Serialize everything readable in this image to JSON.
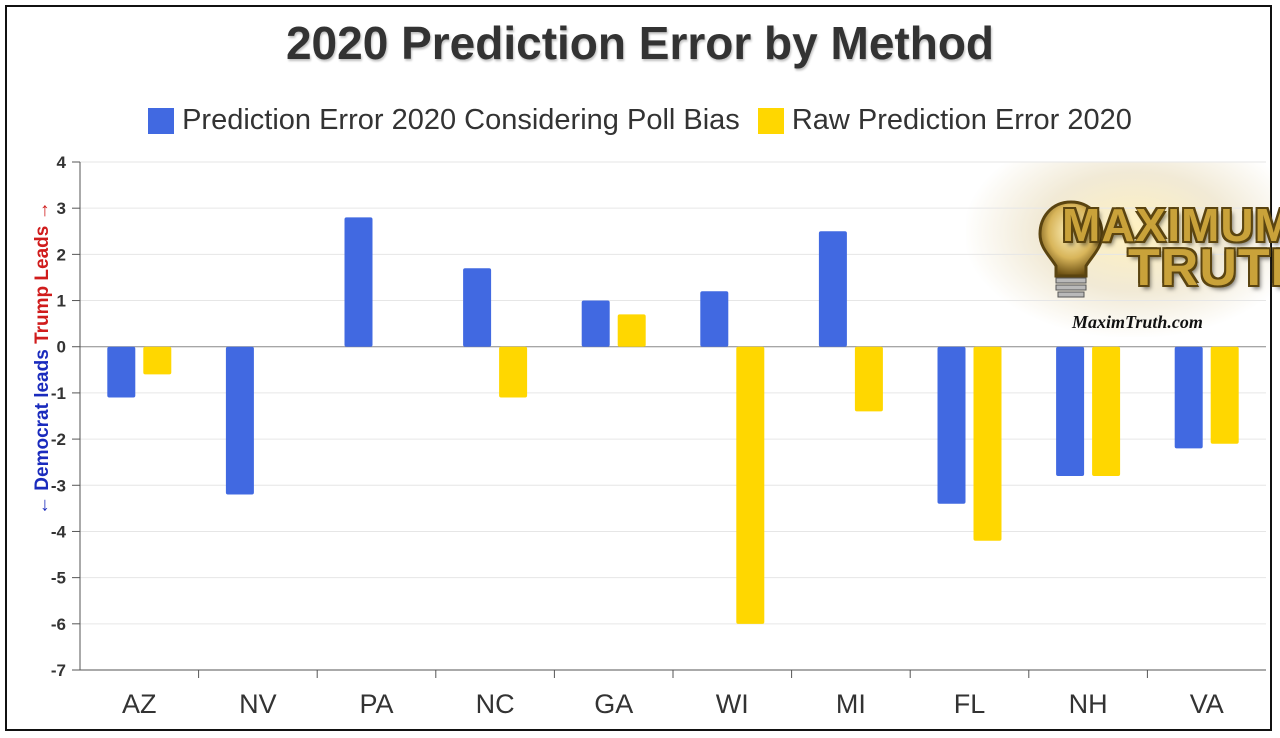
{
  "chart_data": {
    "type": "bar",
    "title": "2020 Prediction Error by Method",
    "categories": [
      "AZ",
      "NV",
      "PA",
      "NC",
      "GA",
      "WI",
      "MI",
      "FL",
      "NH",
      "VA"
    ],
    "series": [
      {
        "name": "Prediction Error 2020 Considering Poll Bias",
        "color": "#4169e1",
        "values": [
          -1.1,
          -3.2,
          2.8,
          1.7,
          1.0,
          1.2,
          2.5,
          -3.4,
          -2.8,
          -2.2
        ]
      },
      {
        "name": "Raw Prediction Error 2020",
        "color": "#ffd700",
        "values": [
          -0.6,
          0,
          0,
          -1.1,
          0.7,
          -6.0,
          -1.4,
          -4.2,
          -2.8,
          -2.1
        ]
      }
    ],
    "ylim": [
      -7,
      4
    ],
    "yticks": [
      4,
      3,
      2,
      1,
      0,
      -1,
      -2,
      -3,
      -4,
      -5,
      -6,
      -7
    ],
    "grid": true,
    "legend_position": "top"
  },
  "axis_annotation": {
    "democrat": "← Democrat leads",
    "trump": "Trump Leads →"
  },
  "logo": {
    "line1": "MAXIMUM",
    "line2": "TRUTH",
    "url": "MaximTruth.com"
  }
}
